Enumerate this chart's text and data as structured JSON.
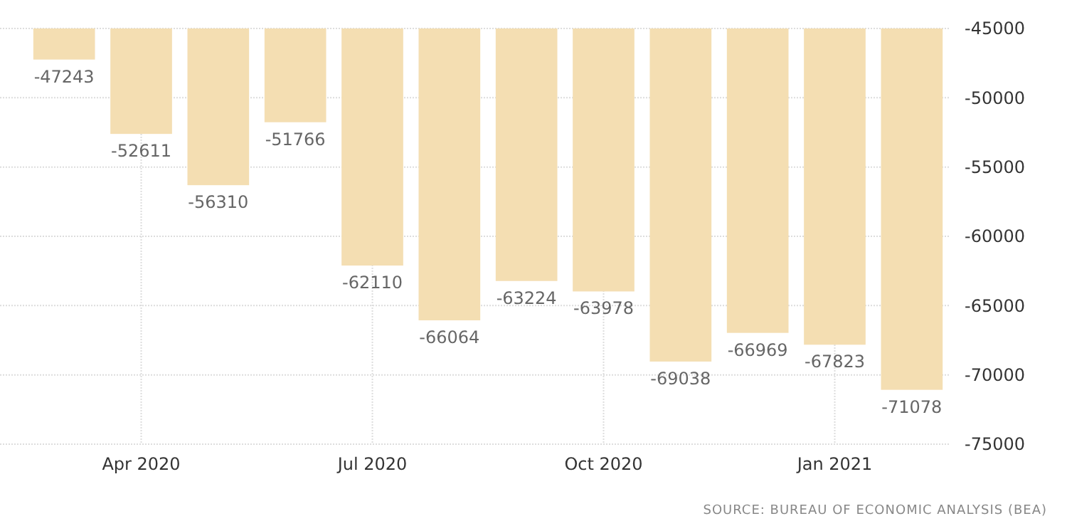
{
  "chart_data": {
    "type": "bar",
    "categories": [
      null,
      "Apr 2020",
      null,
      null,
      "Jul 2020",
      null,
      null,
      "Oct 2020",
      null,
      null,
      "Jan 2021",
      null
    ],
    "values": [
      -47243,
      -52611,
      -56310,
      -51766,
      -62110,
      -66064,
      -63224,
      -63978,
      -69038,
      -66969,
      -67823,
      -71078
    ],
    "color": "#f4deb2",
    "ylim": [
      -75000,
      -45000
    ],
    "yticks": [
      -75000,
      -70000,
      -65000,
      -60000,
      -55000,
      -50000,
      -45000
    ],
    "grid": true,
    "data_labels": true,
    "annotations": [
      "SOURCE: BUREAU OF ECONOMIC ANALYSIS (BEA)"
    ]
  }
}
